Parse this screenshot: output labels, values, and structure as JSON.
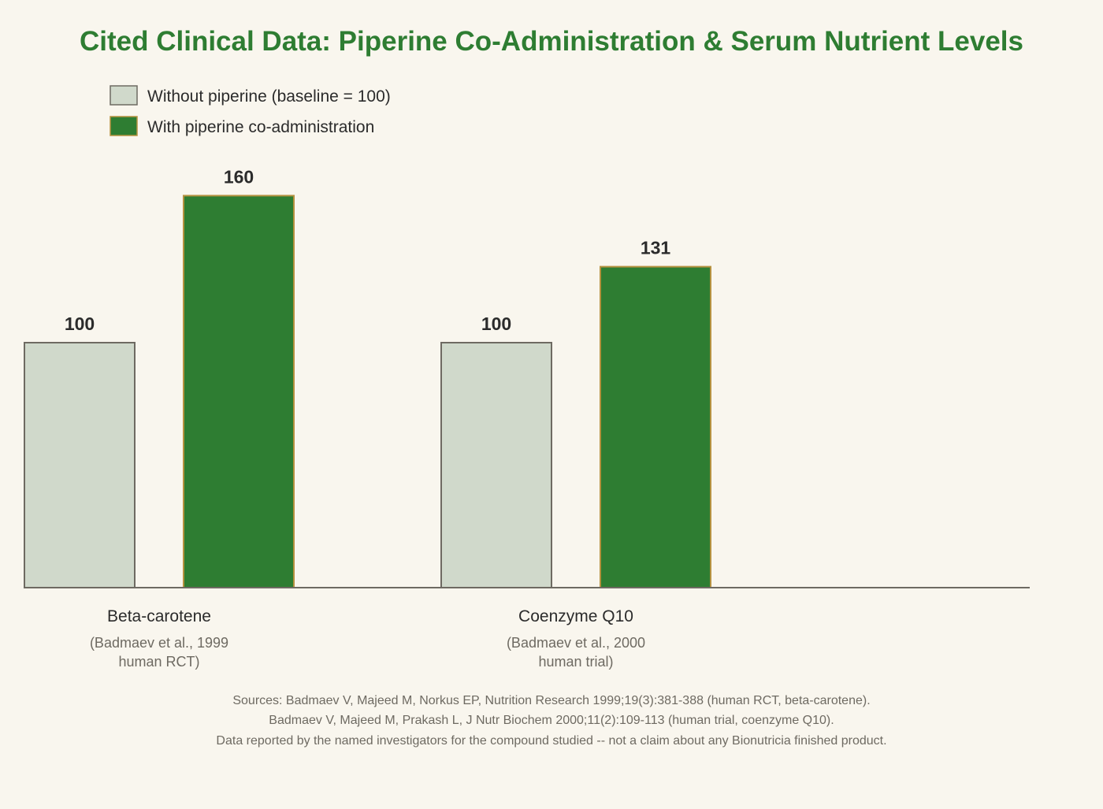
{
  "chart_data": {
    "type": "bar",
    "title": "Cited Clinical Data: Piperine Co-Administration & Serum Nutrient Levels",
    "categories": [
      "Beta-carotene",
      "Coenzyme Q10"
    ],
    "category_notes": [
      [
        "(Badmaev et al., 1999",
        "human RCT)"
      ],
      [
        "(Badmaev et al., 2000",
        "human trial)"
      ]
    ],
    "series": [
      {
        "name": "Without piperine (baseline = 100)",
        "values": [
          100,
          100
        ],
        "color": "#d0d9cb",
        "stroke": "#6e6a62"
      },
      {
        "name": "With piperine co-administration",
        "values": [
          160,
          131
        ],
        "color": "#2e7d32",
        "stroke": "#b5913f"
      }
    ],
    "xlabel": "",
    "ylabel": "",
    "ylim": [
      0,
      175
    ],
    "grid": false,
    "legend_position": "top-left"
  },
  "footnote": {
    "lines": [
      "Sources: Badmaev V, Majeed M, Norkus EP, Nutrition Research 1999;19(3):381-388 (human RCT, beta-carotene).",
      "Badmaev V, Majeed M, Prakash L, J Nutr Biochem 2000;11(2):109-113 (human trial, coenzyme Q10).",
      "Data reported by the named investigators for the compound studied -- not a claim about any Bionutricia finished product."
    ]
  }
}
